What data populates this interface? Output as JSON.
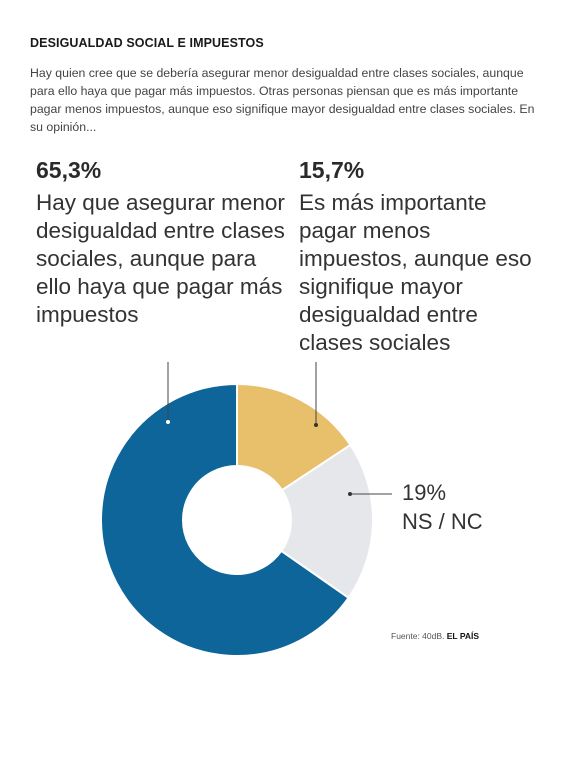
{
  "header": {
    "title": "DESIGUALDAD SOCIAL E IMPUESTOS",
    "intro": "Hay quien cree que se debería asegurar menor desigualdad entre clases sociales, aunque para ello haya que pagar más impuestos. Otras personas piensan que es más importante pagar menos impuestos, aunque eso signifique mayor desigualdad entre clases sociales. En su opinión..."
  },
  "labels": {
    "left_pct": "65,3%",
    "left_text": "Hay que asegurar menor desigualdad entre clases sociales, aunque para ello haya que pagar más impuestos",
    "right_pct": "15,7%",
    "right_text": "Es más importante pagar menos impuestos, aunque eso signifique mayor desigualdad entre clases sociales",
    "ns_pct": "19%",
    "ns_text": "NS / NC"
  },
  "source": {
    "prefix": "Fuente: 40dB. ",
    "brand": "EL PAÍS"
  },
  "colors": {
    "asegurar": "#0d6599",
    "pagar_menos": "#e8bf6a",
    "nsnc": "#e6e7ea"
  },
  "chart_data": {
    "type": "pie",
    "donut": true,
    "start_angle_deg": 0,
    "direction": "clockwise",
    "slices": [
      {
        "label": "Es más importante pagar menos impuestos, aunque eso signifique mayor desigualdad entre clases sociales",
        "value": 15.7,
        "color_key": "pagar_menos"
      },
      {
        "label": "NS / NC",
        "value": 19,
        "color_key": "nsnc"
      },
      {
        "label": "Hay que asegurar menor desigualdad entre clases sociales, aunque para ello haya que pagar más impuestos",
        "value": 65.3,
        "color_key": "asegurar"
      }
    ]
  }
}
